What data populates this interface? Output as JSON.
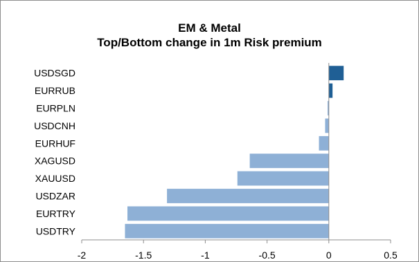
{
  "chart_data": {
    "type": "bar",
    "orientation": "horizontal",
    "title": "EM & Metal",
    "subtitle": "Top/Bottom change in 1m Risk premium",
    "categories": [
      "USDSGD",
      "EURRUB",
      "EURPLN",
      "USDCNH",
      "EURHUF",
      "XAGUSD",
      "XAUUSD",
      "USDZAR",
      "EURTRY",
      "USDTRY"
    ],
    "values": [
      0.12,
      0.03,
      -0.01,
      -0.03,
      -0.08,
      -0.64,
      -0.74,
      -1.31,
      -1.63,
      -1.65
    ],
    "xlim": [
      -2,
      0.5
    ],
    "xticks": [
      "-2",
      "-1.5",
      "-1",
      "-0.5",
      "0",
      "0.5"
    ],
    "grid": false,
    "legend": "none",
    "colors": {
      "positive": "#1f5f95",
      "negative": "#8eb0d6",
      "axis": "#8c8c8c"
    }
  }
}
